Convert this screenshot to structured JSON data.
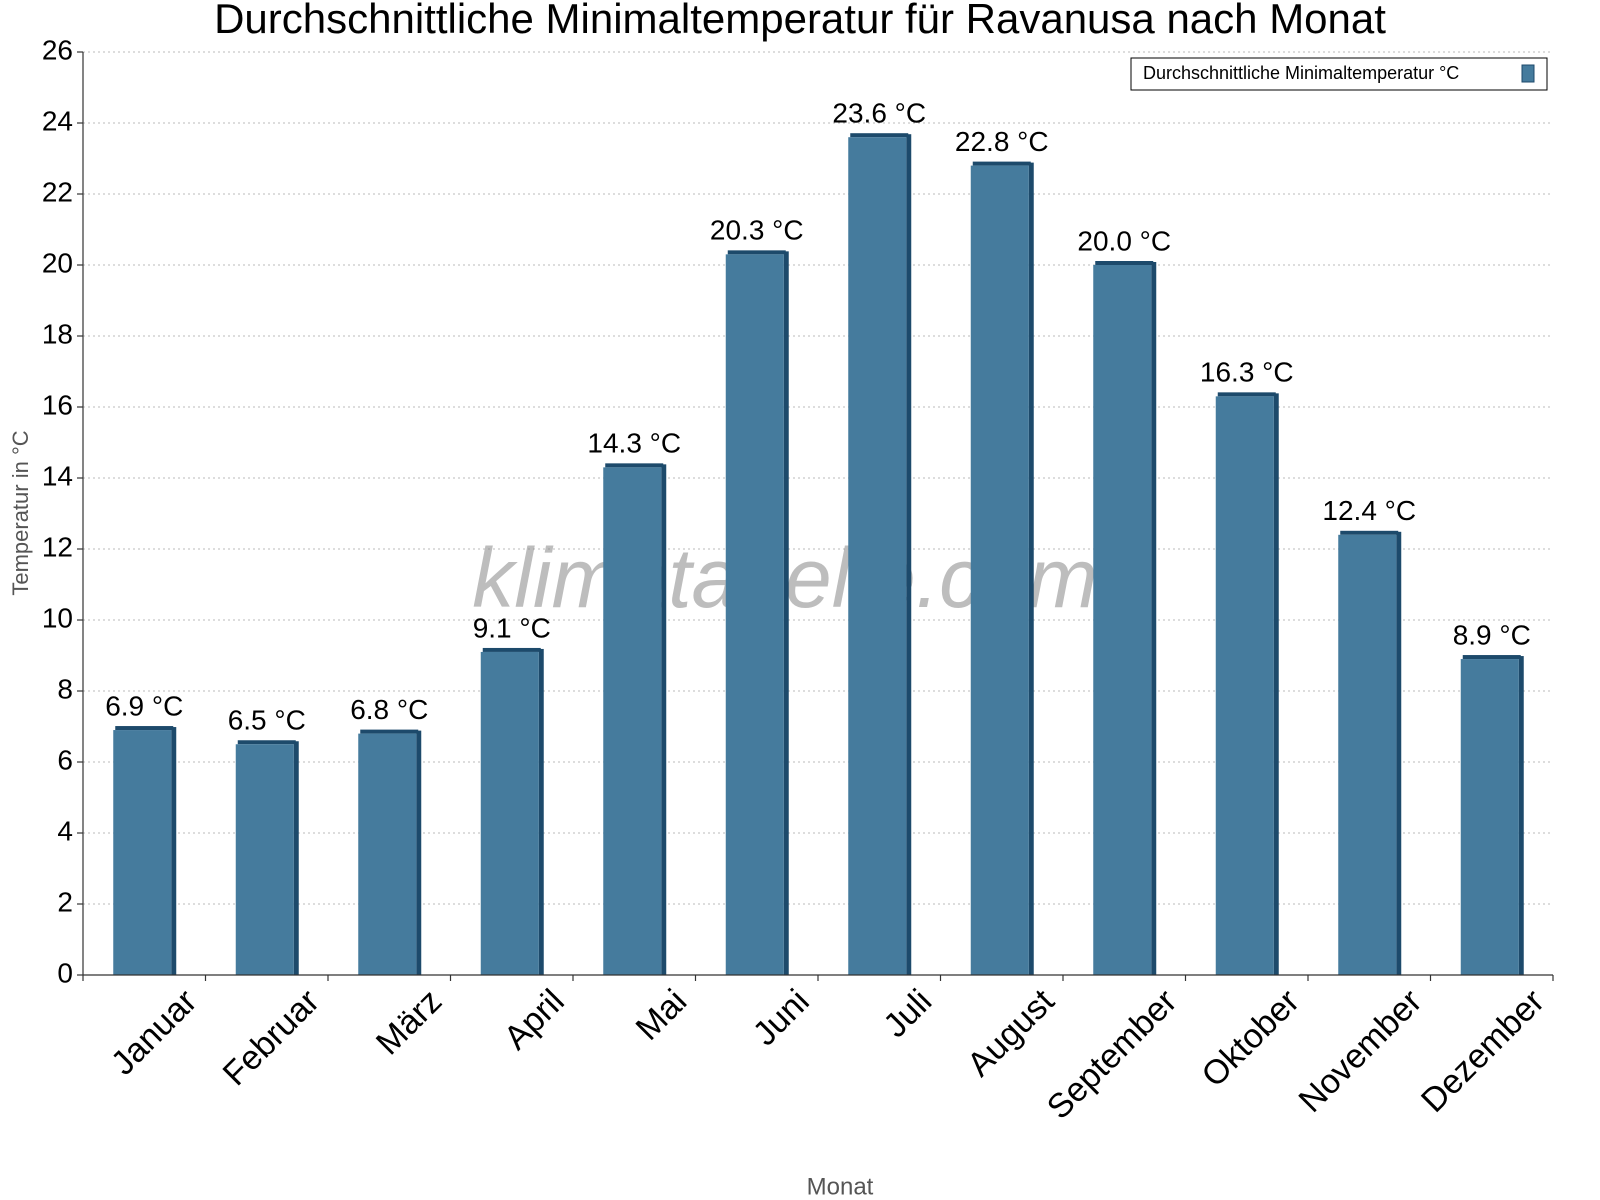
{
  "chart_data": {
    "type": "bar",
    "title": "Durchschnittliche Minimaltemperatur für Ravanusa nach Monat",
    "x_label": "Monat",
    "y_label": "Temperatur in °C",
    "watermark": "klimatabelle.com",
    "categories": [
      "Januar",
      "Februar",
      "März",
      "April",
      "Mai",
      "Juni",
      "Juli",
      "August",
      "September",
      "Oktober",
      "November",
      "Dezember"
    ],
    "series": [
      {
        "name": "Durchschnittliche Minimaltemperatur °C",
        "color": "#457b9d",
        "values": [
          6.9,
          6.5,
          6.8,
          9.1,
          14.3,
          20.3,
          23.6,
          22.8,
          20.0,
          16.3,
          12.4,
          8.9
        ],
        "value_labels": [
          "6.9 °C",
          "6.5 °C",
          "6.8 °C",
          "9.1 °C",
          "14.3 °C",
          "20.3 °C",
          "23.6 °C",
          "22.8 °C",
          "20.0 °C",
          "16.3 °C",
          "12.4 °C",
          "8.9 °C"
        ]
      }
    ],
    "ylim": [
      0,
      26
    ],
    "yticks": [
      0,
      2,
      4,
      6,
      8,
      10,
      12,
      14,
      16,
      18,
      20,
      22,
      24,
      26
    ],
    "grid": true,
    "legend": "top-right"
  }
}
